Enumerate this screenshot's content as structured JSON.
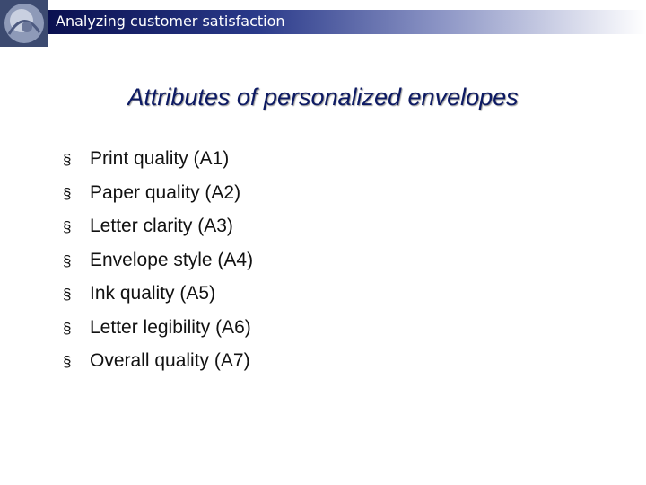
{
  "header": {
    "title": "Analyzing customer satisfaction"
  },
  "title": "Attributes of personalized envelopes",
  "bullet_marker": "§",
  "items": [
    "Print quality (A1)",
    "Paper quality (A2)",
    "Letter clarity (A3)",
    "Envelope style (A4)",
    "Ink quality (A5)",
    "Letter legibility (A6)",
    "Overall quality (A7)"
  ]
}
